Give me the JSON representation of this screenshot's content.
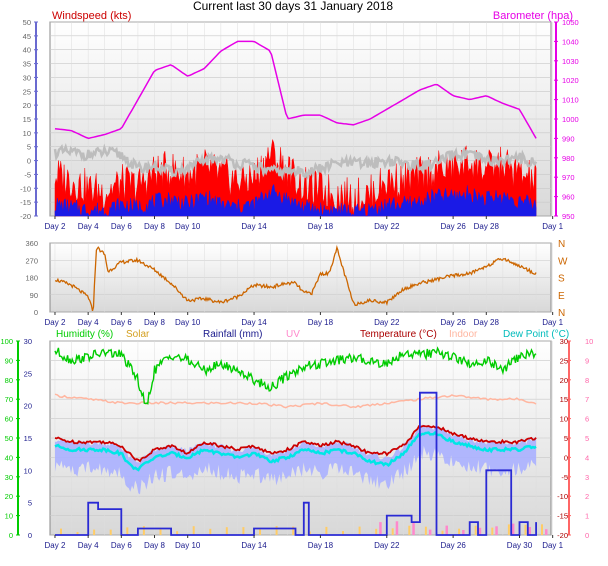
{
  "title": "Current last 30 days 31 January 2018",
  "colors": {
    "windspeed": "#ff0000",
    "gust_avg": "#1a1ae6",
    "gust_max": "#bdbdbd",
    "barometer": "#e600e6",
    "wind_dir": "#cc6600",
    "humidity": "#00cc00",
    "solar": "#ffcc66",
    "rainfall": "#2a2ad4",
    "uv": "#ff88cc",
    "temperature": "#cc0000",
    "indoor": "#ffb6a0",
    "dewpoint": "#00e6e6",
    "dewrange": "#aab0ff"
  },
  "chart_data": [
    {
      "type": "line",
      "title": "",
      "labels": {
        "left": "Windspeed (kts)",
        "right": "Barometer (hpa)"
      },
      "x_ticks": [
        "Day 2",
        "Day 4",
        "Day 6",
        "Day 8",
        "Day 10",
        "Day 14",
        "Day 18",
        "Day 22",
        "Day 26",
        "Day 28",
        "Day 1"
      ],
      "left_axis": {
        "ticks": [
          "50",
          "45",
          "40",
          "35",
          "30",
          "25",
          "20",
          "15",
          "10",
          "5",
          "0",
          "-5",
          "-10",
          "-15",
          "-20"
        ],
        "ylim": [
          -20,
          50
        ]
      },
      "right_axis": {
        "ticks": [
          "1050",
          "1040",
          "1030",
          "1020",
          "1010",
          "1000",
          "990",
          "980",
          "970",
          "960",
          "950"
        ],
        "ylim": [
          950,
          1050
        ]
      },
      "series": [
        {
          "key": "barometer",
          "axis": "right",
          "x": [
            2,
            3,
            4,
            5,
            6,
            7,
            8,
            9,
            10,
            11,
            12,
            13,
            14,
            15,
            16,
            17,
            18,
            19,
            20,
            21,
            22,
            23,
            24,
            25,
            26,
            27,
            28,
            29,
            30,
            31
          ],
          "values": [
            995,
            994,
            990,
            992,
            995,
            1010,
            1025,
            1028,
            1022,
            1026,
            1035,
            1040,
            1040,
            1035,
            1000,
            1002,
            1002,
            998,
            997,
            1000,
            1005,
            1010,
            1015,
            1018,
            1012,
            1010,
            1012,
            1008,
            1005,
            990
          ]
        },
        {
          "key": "gust_max",
          "axis": "left",
          "x": [
            2,
            3,
            4,
            5,
            6,
            7,
            8,
            9,
            10,
            11,
            12,
            13,
            14,
            15,
            16,
            17,
            18,
            19,
            20,
            21,
            22,
            23,
            24,
            25,
            26,
            27,
            28,
            29,
            30,
            31
          ],
          "values": [
            3,
            3,
            2,
            3,
            2,
            -3,
            -2,
            -4,
            -3,
            0,
            1,
            -1,
            -2,
            -4,
            -4,
            -4,
            -3,
            -1,
            -1,
            -1,
            0,
            -1,
            -2,
            -1,
            2,
            2,
            0,
            0,
            1,
            -1
          ]
        },
        {
          "key": "windspeed",
          "axis": "left",
          "x": [
            2,
            3,
            4,
            5,
            6,
            7,
            8,
            9,
            10,
            11,
            12,
            13,
            14,
            15,
            16,
            17,
            18,
            19,
            20,
            21,
            22,
            23,
            24,
            25,
            26,
            27,
            28,
            29,
            30,
            31
          ],
          "values": [
            -8,
            -10,
            -13,
            -14,
            -11,
            -12,
            -7,
            -6,
            -8,
            -5,
            -8,
            -10,
            -9,
            0,
            -6,
            -12,
            -13,
            -15,
            -16,
            -15,
            -10,
            -10,
            -8,
            -6,
            -5,
            -3,
            -6,
            -4,
            -8,
            -10
          ]
        },
        {
          "key": "gust_avg",
          "axis": "left",
          "x": [
            2,
            3,
            4,
            5,
            6,
            7,
            8,
            9,
            10,
            11,
            12,
            13,
            14,
            15,
            16,
            17,
            18,
            19,
            20,
            21,
            22,
            23,
            24,
            25,
            26,
            27,
            28,
            29,
            30,
            31
          ],
          "values": [
            -17,
            -18,
            -19,
            -19,
            -17,
            -18,
            -16,
            -15,
            -17,
            -14,
            -17,
            -18,
            -17,
            -12,
            -15,
            -18,
            -19,
            -19,
            -20,
            -19,
            -17,
            -17,
            -16,
            -14,
            -14,
            -13,
            -15,
            -14,
            -16,
            -17
          ]
        }
      ]
    },
    {
      "type": "line",
      "title": "",
      "x_ticks": [
        "Day 2",
        "Day 4",
        "Day 6",
        "Day 8",
        "Day 10",
        "Day 14",
        "Day 18",
        "Day 22",
        "Day 26",
        "Day 28",
        "Day 1"
      ],
      "left_axis": {
        "ticks": [
          "360",
          "270",
          "180",
          "90",
          "0"
        ],
        "ylim": [
          0,
          360
        ]
      },
      "right_axis": {
        "ticks": [
          "N",
          "W",
          "S",
          "E",
          "N"
        ]
      },
      "series": [
        {
          "key": "wind_dir",
          "x": [
            2,
            3,
            4,
            4.3,
            4.5,
            5,
            5.2,
            6,
            7,
            8,
            9,
            10,
            11,
            12,
            13,
            14,
            15,
            16,
            16.5,
            17,
            17.5,
            18,
            18.5,
            19,
            20,
            21,
            22,
            23,
            24,
            25,
            26,
            27,
            28,
            29,
            30,
            31
          ],
          "values": [
            170,
            140,
            80,
            0,
            340,
            300,
            210,
            260,
            270,
            220,
            150,
            60,
            70,
            50,
            80,
            140,
            130,
            150,
            150,
            100,
            100,
            200,
            200,
            330,
            40,
            60,
            50,
            120,
            150,
            170,
            190,
            200,
            240,
            280,
            240,
            200
          ]
        }
      ]
    },
    {
      "type": "line",
      "title": "",
      "labels": {
        "humidity": "Humidity (%)",
        "solar": "Solar",
        "rainfall": "Rainfall (mm)",
        "uv": "UV",
        "temperature": "Temperature (°C)",
        "indoor": "Indoor",
        "dewpoint": "Dew Point (°C)"
      },
      "x_ticks": [
        "Day 2",
        "Day 4",
        "Day 6",
        "Day 8",
        "Day 10",
        "Day 14",
        "Day 18",
        "Day 22",
        "Day 26",
        "Day 30",
        "Day 1"
      ],
      "left_axis_humidity": {
        "ticks": [
          "100",
          "90",
          "80",
          "70",
          "60",
          "50",
          "40",
          "30",
          "20",
          "10",
          "0"
        ],
        "ylim": [
          0,
          100
        ]
      },
      "left_axis_rain": {
        "ticks": [
          "30",
          "25",
          "20",
          "15",
          "10",
          "5",
          "0"
        ],
        "ylim": [
          0,
          30
        ]
      },
      "right_axis_temp": {
        "ticks": [
          "30",
          "25",
          "20",
          "15",
          "10",
          "5",
          "0",
          "-5",
          "-10",
          "-15",
          "-20"
        ],
        "ylim": [
          -20,
          30
        ]
      },
      "right_axis_uv": {
        "ticks": [
          "10",
          "9",
          "8",
          "7",
          "6",
          "5",
          "4",
          "3",
          "2",
          "1",
          "0"
        ],
        "ylim": [
          0,
          10
        ]
      },
      "series": [
        {
          "key": "humidity",
          "x": [
            2,
            3,
            4,
            5,
            6,
            7,
            7.5,
            8,
            9,
            10,
            11,
            12,
            13,
            14,
            15,
            16,
            17,
            18,
            19,
            20,
            21,
            22,
            23,
            24,
            25,
            26,
            27,
            28,
            29,
            30,
            31
          ],
          "values": [
            95,
            90,
            92,
            94,
            93,
            80,
            65,
            85,
            93,
            90,
            85,
            88,
            85,
            80,
            76,
            82,
            87,
            88,
            90,
            91,
            90,
            88,
            94,
            93,
            94,
            92,
            88,
            90,
            85,
            92,
            94
          ]
        },
        {
          "key": "indoor",
          "x": [
            2,
            4,
            6,
            8,
            10,
            12,
            14,
            16,
            18,
            20,
            22,
            24,
            26,
            28,
            30,
            31
          ],
          "values": [
            16,
            15,
            14,
            14,
            14,
            14,
            14,
            13,
            14,
            13,
            14,
            15,
            16,
            15,
            15,
            14
          ]
        },
        {
          "key": "temperature",
          "x": [
            2,
            3,
            4,
            5,
            6,
            6.5,
            7,
            8,
            9,
            10,
            11,
            12,
            13,
            14,
            15,
            16,
            17,
            18,
            19,
            20,
            21,
            22,
            23,
            24,
            25,
            26,
            27,
            28,
            29,
            30,
            31
          ],
          "values": [
            5,
            4,
            4,
            4,
            3,
            1,
            -1,
            2,
            3,
            1,
            4,
            3,
            2,
            3,
            1,
            2,
            4,
            3,
            4,
            3,
            1,
            1,
            3,
            8,
            8,
            6,
            5,
            4,
            4,
            4,
            5
          ]
        },
        {
          "key": "dewpoint",
          "x": [
            2,
            3,
            4,
            5,
            6,
            6.5,
            7,
            8,
            9,
            10,
            11,
            12,
            13,
            14,
            15,
            16,
            17,
            18,
            19,
            20,
            21,
            22,
            23,
            24,
            25,
            26,
            27,
            28,
            29,
            30,
            31
          ],
          "values": [
            3,
            2,
            2,
            2,
            1,
            -2,
            -3,
            0,
            1,
            0,
            2,
            1,
            0,
            1,
            -1,
            0,
            2,
            1,
            2,
            1,
            -1,
            -2,
            1,
            6,
            6,
            4,
            3,
            2,
            2,
            2,
            3
          ]
        },
        {
          "key": "rainfall",
          "x": [
            2,
            3.5,
            4,
            4.2,
            4.6,
            5.5,
            6,
            6.6,
            7,
            7.2,
            9,
            10,
            12,
            14,
            16,
            16.5,
            17,
            17.3,
            18,
            19,
            19.5,
            20,
            21,
            22,
            23,
            23.5,
            24,
            24.5,
            25,
            26,
            27,
            27.5,
            28,
            29,
            29.5,
            30,
            30.5,
            31
          ],
          "values": [
            0,
            0,
            5,
            5,
            4,
            4,
            0,
            0,
            1,
            1,
            0,
            0,
            0,
            1,
            1,
            0,
            5,
            0,
            0,
            0,
            0,
            0,
            0,
            3,
            3,
            2,
            22,
            22,
            0,
            0,
            2,
            0,
            10,
            10,
            0,
            2,
            0,
            2
          ]
        }
      ]
    }
  ]
}
